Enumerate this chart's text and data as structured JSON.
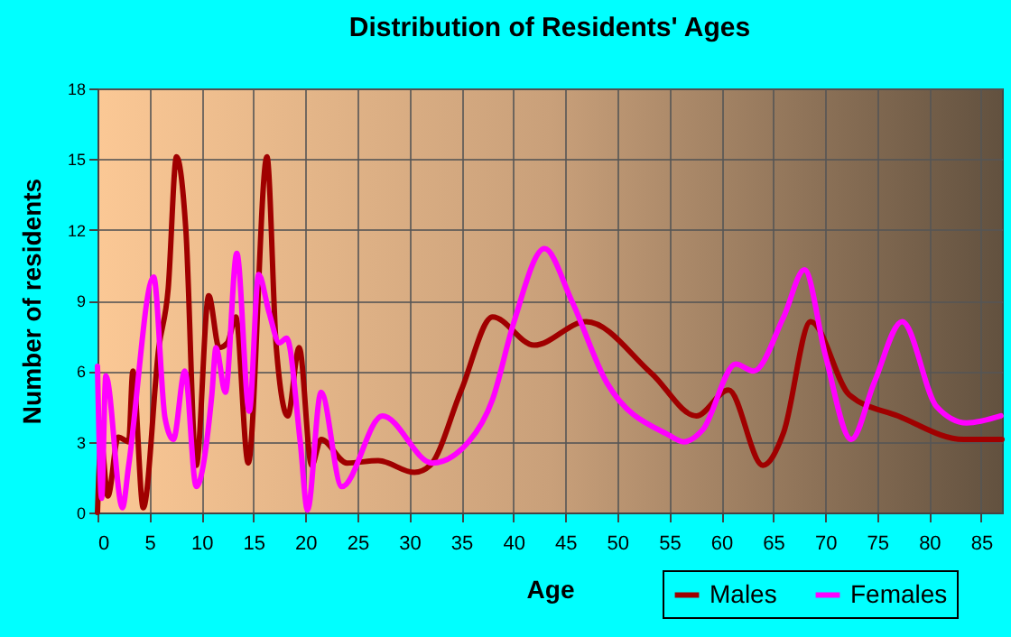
{
  "chart_data": {
    "type": "line",
    "title": "Distribution of Residents' Ages",
    "xlabel": "Age",
    "ylabel": "Number of residents",
    "xlim": [
      0,
      87
    ],
    "xticks": [
      0,
      5,
      10,
      15,
      20,
      25,
      30,
      35,
      40,
      45,
      50,
      55,
      60,
      65,
      70,
      75,
      80,
      85
    ],
    "ylim": [
      0,
      18
    ],
    "yticks": [
      0,
      3,
      6,
      9,
      12,
      15,
      18
    ],
    "grid": true,
    "legend": "bottom right",
    "series": [
      {
        "name": "Males",
        "color": "#a00000",
        "x": [
          0,
          0.35,
          1,
          2,
          3,
          3.4,
          4.4,
          5.9,
          6.8,
          7.6,
          8.5,
          9.5,
          10.7,
          11.7,
          12.5,
          13.3,
          14.5,
          16.3,
          17.2,
          18.3,
          19.4,
          20.6,
          21.5,
          24,
          27,
          30.5,
          32,
          35,
          38,
          42,
          47,
          53.3,
          57.6,
          60.7,
          64,
          66,
          68.6,
          72.3,
          77,
          83.3,
          87
        ],
        "values": [
          0,
          3,
          0.7,
          3.2,
          3,
          6,
          0.2,
          7,
          9.5,
          15.1,
          12,
          2,
          9.2,
          7,
          7.2,
          8.3,
          2.1,
          15.1,
          7,
          4.1,
          7,
          2,
          3.1,
          2.1,
          2.2,
          1.7,
          2,
          5.2,
          8.3,
          7.1,
          8.1,
          5.9,
          4.1,
          5.2,
          2,
          3.4,
          8.1,
          5,
          4.1,
          3.1,
          3.1
        ]
      },
      {
        "name": "Females",
        "color": "#ff00ff",
        "x": [
          0,
          0.4,
          0.8,
          2.4,
          3,
          5.4,
          6.5,
          7.3,
          8.4,
          9.5,
          11,
          11.4,
          12.3,
          13.4,
          14.6,
          15.5,
          16.5,
          17.5,
          18.2,
          19.5,
          20.2,
          21.5,
          23.5,
          27.4,
          32.2,
          35.7,
          38,
          40,
          43,
          45.6,
          49,
          54.9,
          56.4,
          58.2,
          61.4,
          63.1,
          66,
          68,
          70,
          72.5,
          74.7,
          77.4,
          80.7,
          83.6,
          86.9
        ],
        "values": [
          6.2,
          0.6,
          5.8,
          0.2,
          2,
          10,
          4,
          3.1,
          6,
          1.1,
          5,
          7,
          5.1,
          11,
          4.3,
          10.1,
          8.5,
          7.2,
          7.4,
          3,
          0.1,
          5.1,
          1.1,
          4.1,
          2.1,
          3,
          4.8,
          8,
          11.2,
          9,
          5.5,
          3.3,
          3,
          3.5,
          6.3,
          6,
          8.3,
          10.3,
          6.7,
          3.1,
          5.5,
          8.1,
          4.5,
          3.8,
          4.1
        ]
      }
    ]
  }
}
